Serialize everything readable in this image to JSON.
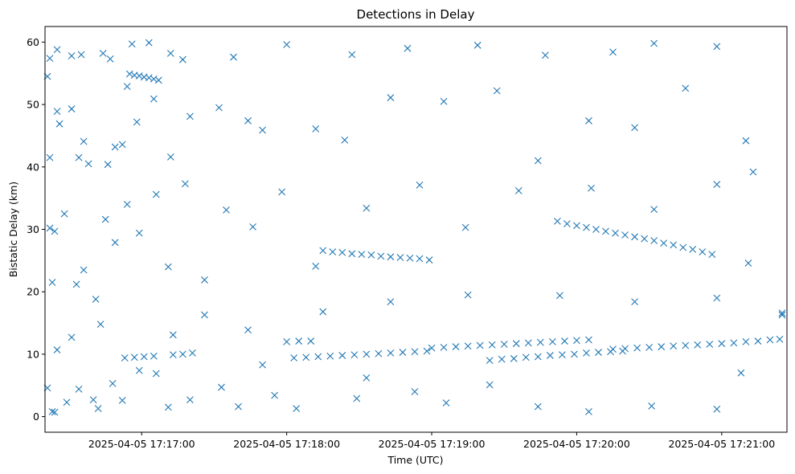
{
  "chart_data": {
    "type": "scatter",
    "title": "Detections in Delay",
    "xlabel": "Time (UTC)",
    "ylabel": "Bistatic Delay (km)",
    "x_is_time": true,
    "xlim": [
      "2025-04-05 17:16:20",
      "2025-04-05 17:21:27"
    ],
    "ylim": [
      -2.5,
      62.5
    ],
    "x_ticks": [
      "2025-04-05 17:17:00",
      "2025-04-05 17:18:00",
      "2025-04-05 17:19:00",
      "2025-04-05 17:20:00",
      "2025-04-05 17:21:00"
    ],
    "y_ticks": [
      0,
      10,
      20,
      30,
      40,
      50,
      60
    ],
    "marker": "x",
    "color": "#1f77b4",
    "grid": false,
    "series": [
      {
        "points": [
          [
            "2025-04-05 17:16:21",
            54.5
          ],
          [
            "2025-04-05 17:16:22",
            57.4
          ],
          [
            "2025-04-05 17:16:25",
            58.8
          ],
          [
            "2025-04-05 17:16:31",
            57.8
          ],
          [
            "2025-04-05 17:16:35",
            58.0
          ],
          [
            "2025-04-05 17:16:44",
            58.2
          ],
          [
            "2025-04-05 17:16:47",
            57.3
          ],
          [
            "2025-04-05 17:16:56",
            59.7
          ],
          [
            "2025-04-05 17:17:03",
            59.9
          ],
          [
            "2025-04-05 17:17:12",
            58.2
          ],
          [
            "2025-04-05 17:17:17",
            57.2
          ],
          [
            "2025-04-05 17:17:38",
            57.6
          ],
          [
            "2025-04-05 17:18:00",
            59.6
          ],
          [
            "2025-04-05 17:18:27",
            58.0
          ],
          [
            "2025-04-05 17:18:50",
            59.0
          ],
          [
            "2025-04-05 17:19:19",
            59.5
          ],
          [
            "2025-04-05 17:19:47",
            57.9
          ],
          [
            "2025-04-05 17:20:15",
            58.4
          ],
          [
            "2025-04-05 17:20:32",
            59.8
          ],
          [
            "2025-04-05 17:20:58",
            59.3
          ],
          [
            "2025-04-05 17:16:22",
            41.5
          ],
          [
            "2025-04-05 17:16:25",
            48.9
          ],
          [
            "2025-04-05 17:16:26",
            46.9
          ],
          [
            "2025-04-05 17:16:31",
            49.3
          ],
          [
            "2025-04-05 17:16:34",
            41.5
          ],
          [
            "2025-04-05 17:16:36",
            44.1
          ],
          [
            "2025-04-05 17:16:38",
            40.5
          ],
          [
            "2025-04-05 17:16:46",
            40.4
          ],
          [
            "2025-04-05 17:16:49",
            43.2
          ],
          [
            "2025-04-05 17:16:52",
            43.6
          ],
          [
            "2025-04-05 17:16:54",
            52.9
          ],
          [
            "2025-04-05 17:16:58",
            47.2
          ],
          [
            "2025-04-05 17:17:05",
            50.9
          ],
          [
            "2025-04-05 17:17:12",
            41.6
          ],
          [
            "2025-04-05 17:17:20",
            48.1
          ],
          [
            "2025-04-05 17:17:32",
            49.5
          ],
          [
            "2025-04-05 17:17:44",
            47.4
          ],
          [
            "2025-04-05 17:17:50",
            45.9
          ],
          [
            "2025-04-05 17:18:12",
            46.1
          ],
          [
            "2025-04-05 17:18:24",
            44.3
          ],
          [
            "2025-04-05 17:18:43",
            51.1
          ],
          [
            "2025-04-05 17:19:05",
            50.5
          ],
          [
            "2025-04-05 17:19:27",
            52.2
          ],
          [
            "2025-04-05 17:19:44",
            41.0
          ],
          [
            "2025-04-05 17:20:05",
            47.4
          ],
          [
            "2025-04-05 17:20:24",
            46.3
          ],
          [
            "2025-04-05 17:20:45",
            52.6
          ],
          [
            "2025-04-05 17:21:10",
            44.2
          ],
          [
            "2025-04-05 17:16:22",
            30.2
          ],
          [
            "2025-04-05 17:16:24",
            29.7
          ],
          [
            "2025-04-05 17:16:23",
            21.5
          ],
          [
            "2025-04-05 17:16:28",
            32.5
          ],
          [
            "2025-04-05 17:16:33",
            21.2
          ],
          [
            "2025-04-05 17:16:36",
            23.5
          ],
          [
            "2025-04-05 17:16:41",
            18.8
          ],
          [
            "2025-04-05 17:16:45",
            31.6
          ],
          [
            "2025-04-05 17:16:49",
            27.9
          ],
          [
            "2025-04-05 17:16:54",
            34.0
          ],
          [
            "2025-04-05 17:16:59",
            29.4
          ],
          [
            "2025-04-05 17:17:06",
            35.6
          ],
          [
            "2025-04-05 17:17:11",
            24.0
          ],
          [
            "2025-04-05 17:17:18",
            37.3
          ],
          [
            "2025-04-05 17:17:26",
            21.9
          ],
          [
            "2025-04-05 17:17:35",
            33.1
          ],
          [
            "2025-04-05 17:17:46",
            30.4
          ],
          [
            "2025-04-05 17:17:58",
            36.0
          ],
          [
            "2025-04-05 17:18:12",
            24.1
          ],
          [
            "2025-04-05 17:18:33",
            33.4
          ],
          [
            "2025-04-05 17:18:55",
            37.1
          ],
          [
            "2025-04-05 17:19:14",
            30.3
          ],
          [
            "2025-04-05 17:19:36",
            36.2
          ],
          [
            "2025-04-05 17:20:06",
            36.6
          ],
          [
            "2025-04-05 17:20:32",
            33.2
          ],
          [
            "2025-04-05 17:20:58",
            37.2
          ],
          [
            "2025-04-05 17:21:13",
            39.2
          ],
          [
            "2025-04-05 17:21:11",
            24.6
          ],
          [
            "2025-04-05 17:16:21",
            4.6
          ],
          [
            "2025-04-05 17:16:23",
            0.8
          ],
          [
            "2025-04-05 17:16:24",
            0.7
          ],
          [
            "2025-04-05 17:16:29",
            2.3
          ],
          [
            "2025-04-05 17:16:34",
            4.4
          ],
          [
            "2025-04-05 17:16:40",
            2.7
          ],
          [
            "2025-04-05 17:16:42",
            1.3
          ],
          [
            "2025-04-05 17:16:48",
            5.3
          ],
          [
            "2025-04-05 17:16:52",
            2.6
          ],
          [
            "2025-04-05 17:16:59",
            7.4
          ],
          [
            "2025-04-05 17:17:06",
            6.9
          ],
          [
            "2025-04-05 17:17:11",
            1.5
          ],
          [
            "2025-04-05 17:17:20",
            2.7
          ],
          [
            "2025-04-05 17:17:33",
            4.7
          ],
          [
            "2025-04-05 17:17:40",
            1.6
          ],
          [
            "2025-04-05 17:17:55",
            3.4
          ],
          [
            "2025-04-05 17:18:04",
            1.3
          ],
          [
            "2025-04-05 17:18:29",
            2.9
          ],
          [
            "2025-04-05 17:18:53",
            4.0
          ],
          [
            "2025-04-05 17:19:06",
            2.2
          ],
          [
            "2025-04-05 17:19:24",
            5.1
          ],
          [
            "2025-04-05 17:19:44",
            1.6
          ],
          [
            "2025-04-05 17:20:05",
            0.8
          ],
          [
            "2025-04-05 17:20:31",
            1.7
          ],
          [
            "2025-04-05 17:20:58",
            1.2
          ],
          [
            "2025-04-05 17:21:08",
            7.0
          ],
          [
            "2025-04-05 17:16:25",
            10.7
          ],
          [
            "2025-04-05 17:16:31",
            12.7
          ],
          [
            "2025-04-05 17:16:43",
            14.8
          ],
          [
            "2025-04-05 17:17:13",
            13.1
          ],
          [
            "2025-04-05 17:17:26",
            16.3
          ],
          [
            "2025-04-05 17:17:44",
            13.9
          ],
          [
            "2025-04-05 17:18:15",
            16.8
          ],
          [
            "2025-04-05 17:18:43",
            18.4
          ],
          [
            "2025-04-05 17:19:15",
            19.5
          ],
          [
            "2025-04-05 17:19:53",
            19.4
          ],
          [
            "2025-04-05 17:20:24",
            18.4
          ],
          [
            "2025-04-05 17:20:58",
            19.0
          ],
          [
            "2025-04-05 17:17:50",
            8.3
          ],
          [
            "2025-04-05 17:18:33",
            6.2
          ],
          [
            "2025-04-05 17:16:55",
            54.9
          ],
          [
            "2025-04-05 17:16:57",
            54.7
          ],
          [
            "2025-04-05 17:16:59",
            54.6
          ],
          [
            "2025-04-05 17:17:01",
            54.4
          ],
          [
            "2025-04-05 17:17:03",
            54.3
          ],
          [
            "2025-04-05 17:17:05",
            54.1
          ],
          [
            "2025-04-05 17:17:07",
            53.9
          ],
          [
            "2025-04-05 17:18:15",
            26.6
          ],
          [
            "2025-04-05 17:18:19",
            26.4
          ],
          [
            "2025-04-05 17:18:23",
            26.3
          ],
          [
            "2025-04-05 17:18:27",
            26.1
          ],
          [
            "2025-04-05 17:18:31",
            26.0
          ],
          [
            "2025-04-05 17:18:35",
            25.9
          ],
          [
            "2025-04-05 17:18:39",
            25.7
          ],
          [
            "2025-04-05 17:18:43",
            25.6
          ],
          [
            "2025-04-05 17:18:47",
            25.5
          ],
          [
            "2025-04-05 17:18:51",
            25.4
          ],
          [
            "2025-04-05 17:18:55",
            25.3
          ],
          [
            "2025-04-05 17:18:59",
            25.1
          ],
          [
            "2025-04-05 17:19:52",
            31.3
          ],
          [
            "2025-04-05 17:19:56",
            30.9
          ],
          [
            "2025-04-05 17:20:00",
            30.6
          ],
          [
            "2025-04-05 17:20:04",
            30.3
          ],
          [
            "2025-04-05 17:20:08",
            30.0
          ],
          [
            "2025-04-05 17:20:12",
            29.7
          ],
          [
            "2025-04-05 17:20:16",
            29.4
          ],
          [
            "2025-04-05 17:20:20",
            29.1
          ],
          [
            "2025-04-05 17:20:24",
            28.8
          ],
          [
            "2025-04-05 17:20:28",
            28.5
          ],
          [
            "2025-04-05 17:20:32",
            28.2
          ],
          [
            "2025-04-05 17:20:36",
            27.8
          ],
          [
            "2025-04-05 17:20:40",
            27.5
          ],
          [
            "2025-04-05 17:20:44",
            27.1
          ],
          [
            "2025-04-05 17:20:48",
            26.8
          ],
          [
            "2025-04-05 17:20:52",
            26.4
          ],
          [
            "2025-04-05 17:20:56",
            26.0
          ],
          [
            "2025-04-05 17:16:53",
            9.4
          ],
          [
            "2025-04-05 17:16:57",
            9.5
          ],
          [
            "2025-04-05 17:17:01",
            9.6
          ],
          [
            "2025-04-05 17:17:05",
            9.7
          ],
          [
            "2025-04-05 17:17:13",
            9.9
          ],
          [
            "2025-04-05 17:17:17",
            10.0
          ],
          [
            "2025-04-05 17:17:21",
            10.2
          ],
          [
            "2025-04-05 17:18:03",
            9.4
          ],
          [
            "2025-04-05 17:18:08",
            9.5
          ],
          [
            "2025-04-05 17:18:13",
            9.6
          ],
          [
            "2025-04-05 17:18:18",
            9.7
          ],
          [
            "2025-04-05 17:18:23",
            9.8
          ],
          [
            "2025-04-05 17:18:28",
            9.9
          ],
          [
            "2025-04-05 17:18:33",
            10.0
          ],
          [
            "2025-04-05 17:18:38",
            10.1
          ],
          [
            "2025-04-05 17:18:43",
            10.2
          ],
          [
            "2025-04-05 17:18:48",
            10.3
          ],
          [
            "2025-04-05 17:18:53",
            10.4
          ],
          [
            "2025-04-05 17:18:58",
            10.5
          ],
          [
            "2025-04-05 17:18:00",
            12.0
          ],
          [
            "2025-04-05 17:18:05",
            12.1
          ],
          [
            "2025-04-05 17:18:10",
            12.1
          ],
          [
            "2025-04-05 17:19:00",
            11.0
          ],
          [
            "2025-04-05 17:19:05",
            11.1
          ],
          [
            "2025-04-05 17:19:10",
            11.2
          ],
          [
            "2025-04-05 17:19:15",
            11.3
          ],
          [
            "2025-04-05 17:19:20",
            11.4
          ],
          [
            "2025-04-05 17:19:25",
            11.5
          ],
          [
            "2025-04-05 17:19:30",
            11.6
          ],
          [
            "2025-04-05 17:19:35",
            11.7
          ],
          [
            "2025-04-05 17:19:40",
            11.8
          ],
          [
            "2025-04-05 17:19:45",
            11.9
          ],
          [
            "2025-04-05 17:19:50",
            12.0
          ],
          [
            "2025-04-05 17:19:55",
            12.1
          ],
          [
            "2025-04-05 17:20:00",
            12.2
          ],
          [
            "2025-04-05 17:20:05",
            12.3
          ],
          [
            "2025-04-05 17:19:24",
            9.0
          ],
          [
            "2025-04-05 17:19:29",
            9.2
          ],
          [
            "2025-04-05 17:19:34",
            9.3
          ],
          [
            "2025-04-05 17:19:39",
            9.5
          ],
          [
            "2025-04-05 17:19:44",
            9.6
          ],
          [
            "2025-04-05 17:19:49",
            9.8
          ],
          [
            "2025-04-05 17:19:54",
            9.9
          ],
          [
            "2025-04-05 17:19:59",
            10.0
          ],
          [
            "2025-04-05 17:20:04",
            10.2
          ],
          [
            "2025-04-05 17:20:09",
            10.3
          ],
          [
            "2025-04-05 17:20:14",
            10.4
          ],
          [
            "2025-04-05 17:20:19",
            10.5
          ],
          [
            "2025-04-05 17:20:15",
            10.8
          ],
          [
            "2025-04-05 17:20:20",
            10.9
          ],
          [
            "2025-04-05 17:20:25",
            11.0
          ],
          [
            "2025-04-05 17:20:30",
            11.1
          ],
          [
            "2025-04-05 17:20:35",
            11.2
          ],
          [
            "2025-04-05 17:20:40",
            11.3
          ],
          [
            "2025-04-05 17:20:45",
            11.4
          ],
          [
            "2025-04-05 17:20:50",
            11.5
          ],
          [
            "2025-04-05 17:20:55",
            11.6
          ],
          [
            "2025-04-05 17:21:00",
            11.7
          ],
          [
            "2025-04-05 17:21:05",
            11.8
          ],
          [
            "2025-04-05 17:21:10",
            12.0
          ],
          [
            "2025-04-05 17:21:15",
            12.1
          ],
          [
            "2025-04-05 17:21:20",
            12.3
          ],
          [
            "2025-04-05 17:21:24",
            12.4
          ],
          [
            "2025-04-05 17:21:25",
            16.3
          ],
          [
            "2025-04-05 17:21:25",
            16.6
          ]
        ]
      }
    ]
  }
}
